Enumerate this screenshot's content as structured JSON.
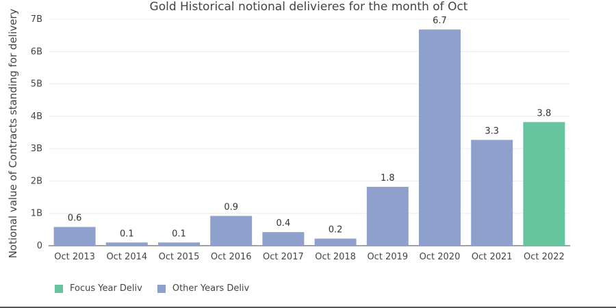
{
  "chart_data": {
    "type": "bar",
    "title": "Gold Historical notional delivieres for the month of Oct",
    "ylabel": "Notional value of Contracts standing for delivery",
    "xlabel": "",
    "categories": [
      "Oct 2013",
      "Oct 2014",
      "Oct 2015",
      "Oct 2016",
      "Oct 2017",
      "Oct 2018",
      "Oct 2019",
      "Oct 2020",
      "Oct 2021",
      "Oct 2022"
    ],
    "values": [
      0.58,
      0.1,
      0.1,
      0.92,
      0.42,
      0.22,
      1.82,
      6.68,
      3.27,
      3.82
    ],
    "data_labels": [
      "0.6",
      "0.1",
      "0.1",
      "0.9",
      "0.4",
      "0.2",
      "1.8",
      "6.7",
      "3.3",
      "3.8"
    ],
    "value_unit": "billions",
    "series_group": [
      "Other Years Deliv",
      "Other Years Deliv",
      "Other Years Deliv",
      "Other Years Deliv",
      "Other Years Deliv",
      "Other Years Deliv",
      "Other Years Deliv",
      "Other Years Deliv",
      "Other Years Deliv",
      "Focus Year Deliv"
    ],
    "ylim": [
      0,
      7
    ],
    "yticks": [
      0,
      1,
      2,
      3,
      4,
      5,
      6,
      7
    ],
    "ytick_labels": [
      "0",
      "1B",
      "2B",
      "3B",
      "4B",
      "5B",
      "6B",
      "7B"
    ],
    "grid": true,
    "legend_position": "bottom-left",
    "colors": {
      "focus": "#66c49e",
      "other": "#8ea0cb"
    }
  },
  "legend": [
    {
      "label": "Focus Year Deliv",
      "color": "#66c49e"
    },
    {
      "label": "Other Years Deliv",
      "color": "#8ea0cb"
    }
  ]
}
